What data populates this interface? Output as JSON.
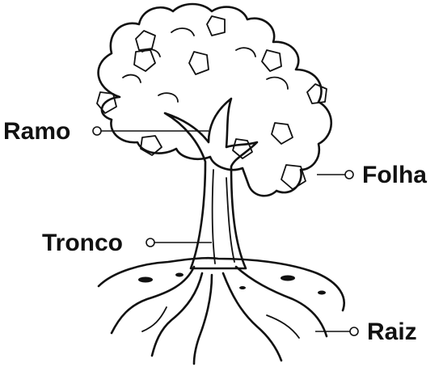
{
  "diagram": {
    "labels": {
      "branch": "Ramo",
      "leaf": "Folha",
      "trunk": "Tronco",
      "root": "Raiz"
    }
  }
}
